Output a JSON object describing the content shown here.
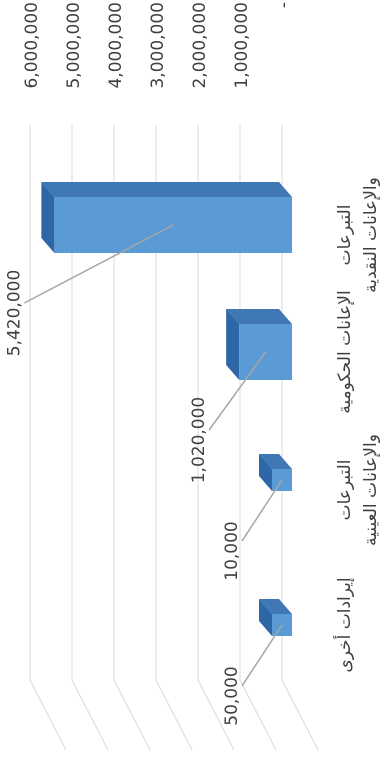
{
  "chart_data": {
    "type": "bar",
    "orientation": "horizontal-3d-rotated",
    "title": "",
    "xlabel": "",
    "ylabel": "",
    "grid": true,
    "legend": "none",
    "categories": [
      [
        "التبرعات",
        "والإعانات النقدية"
      ],
      [
        "الإعانات الحكومية"
      ],
      [
        "التبرعات",
        "والإعانات العينية"
      ],
      [
        "إيرادات أخرى"
      ]
    ],
    "values": [
      5420000,
      1020000,
      10000,
      50000
    ],
    "data_labels": [
      "5,420,000",
      "1,020,000",
      "10,000",
      "50,000"
    ],
    "value_ticks": [
      "-",
      "1,000,000",
      "2,000,000",
      "3,000,000",
      "4,000,000",
      "5,000,000",
      "6,000,000"
    ],
    "ylim": [
      0,
      6000000
    ],
    "colors": {
      "bar_front": "#5B9BD5",
      "bar_side": "#2E67A8",
      "bar_top": "#3F78B5",
      "grid": "#d9d9d9",
      "leader": "#a6a6a6",
      "text": "#404040"
    }
  }
}
